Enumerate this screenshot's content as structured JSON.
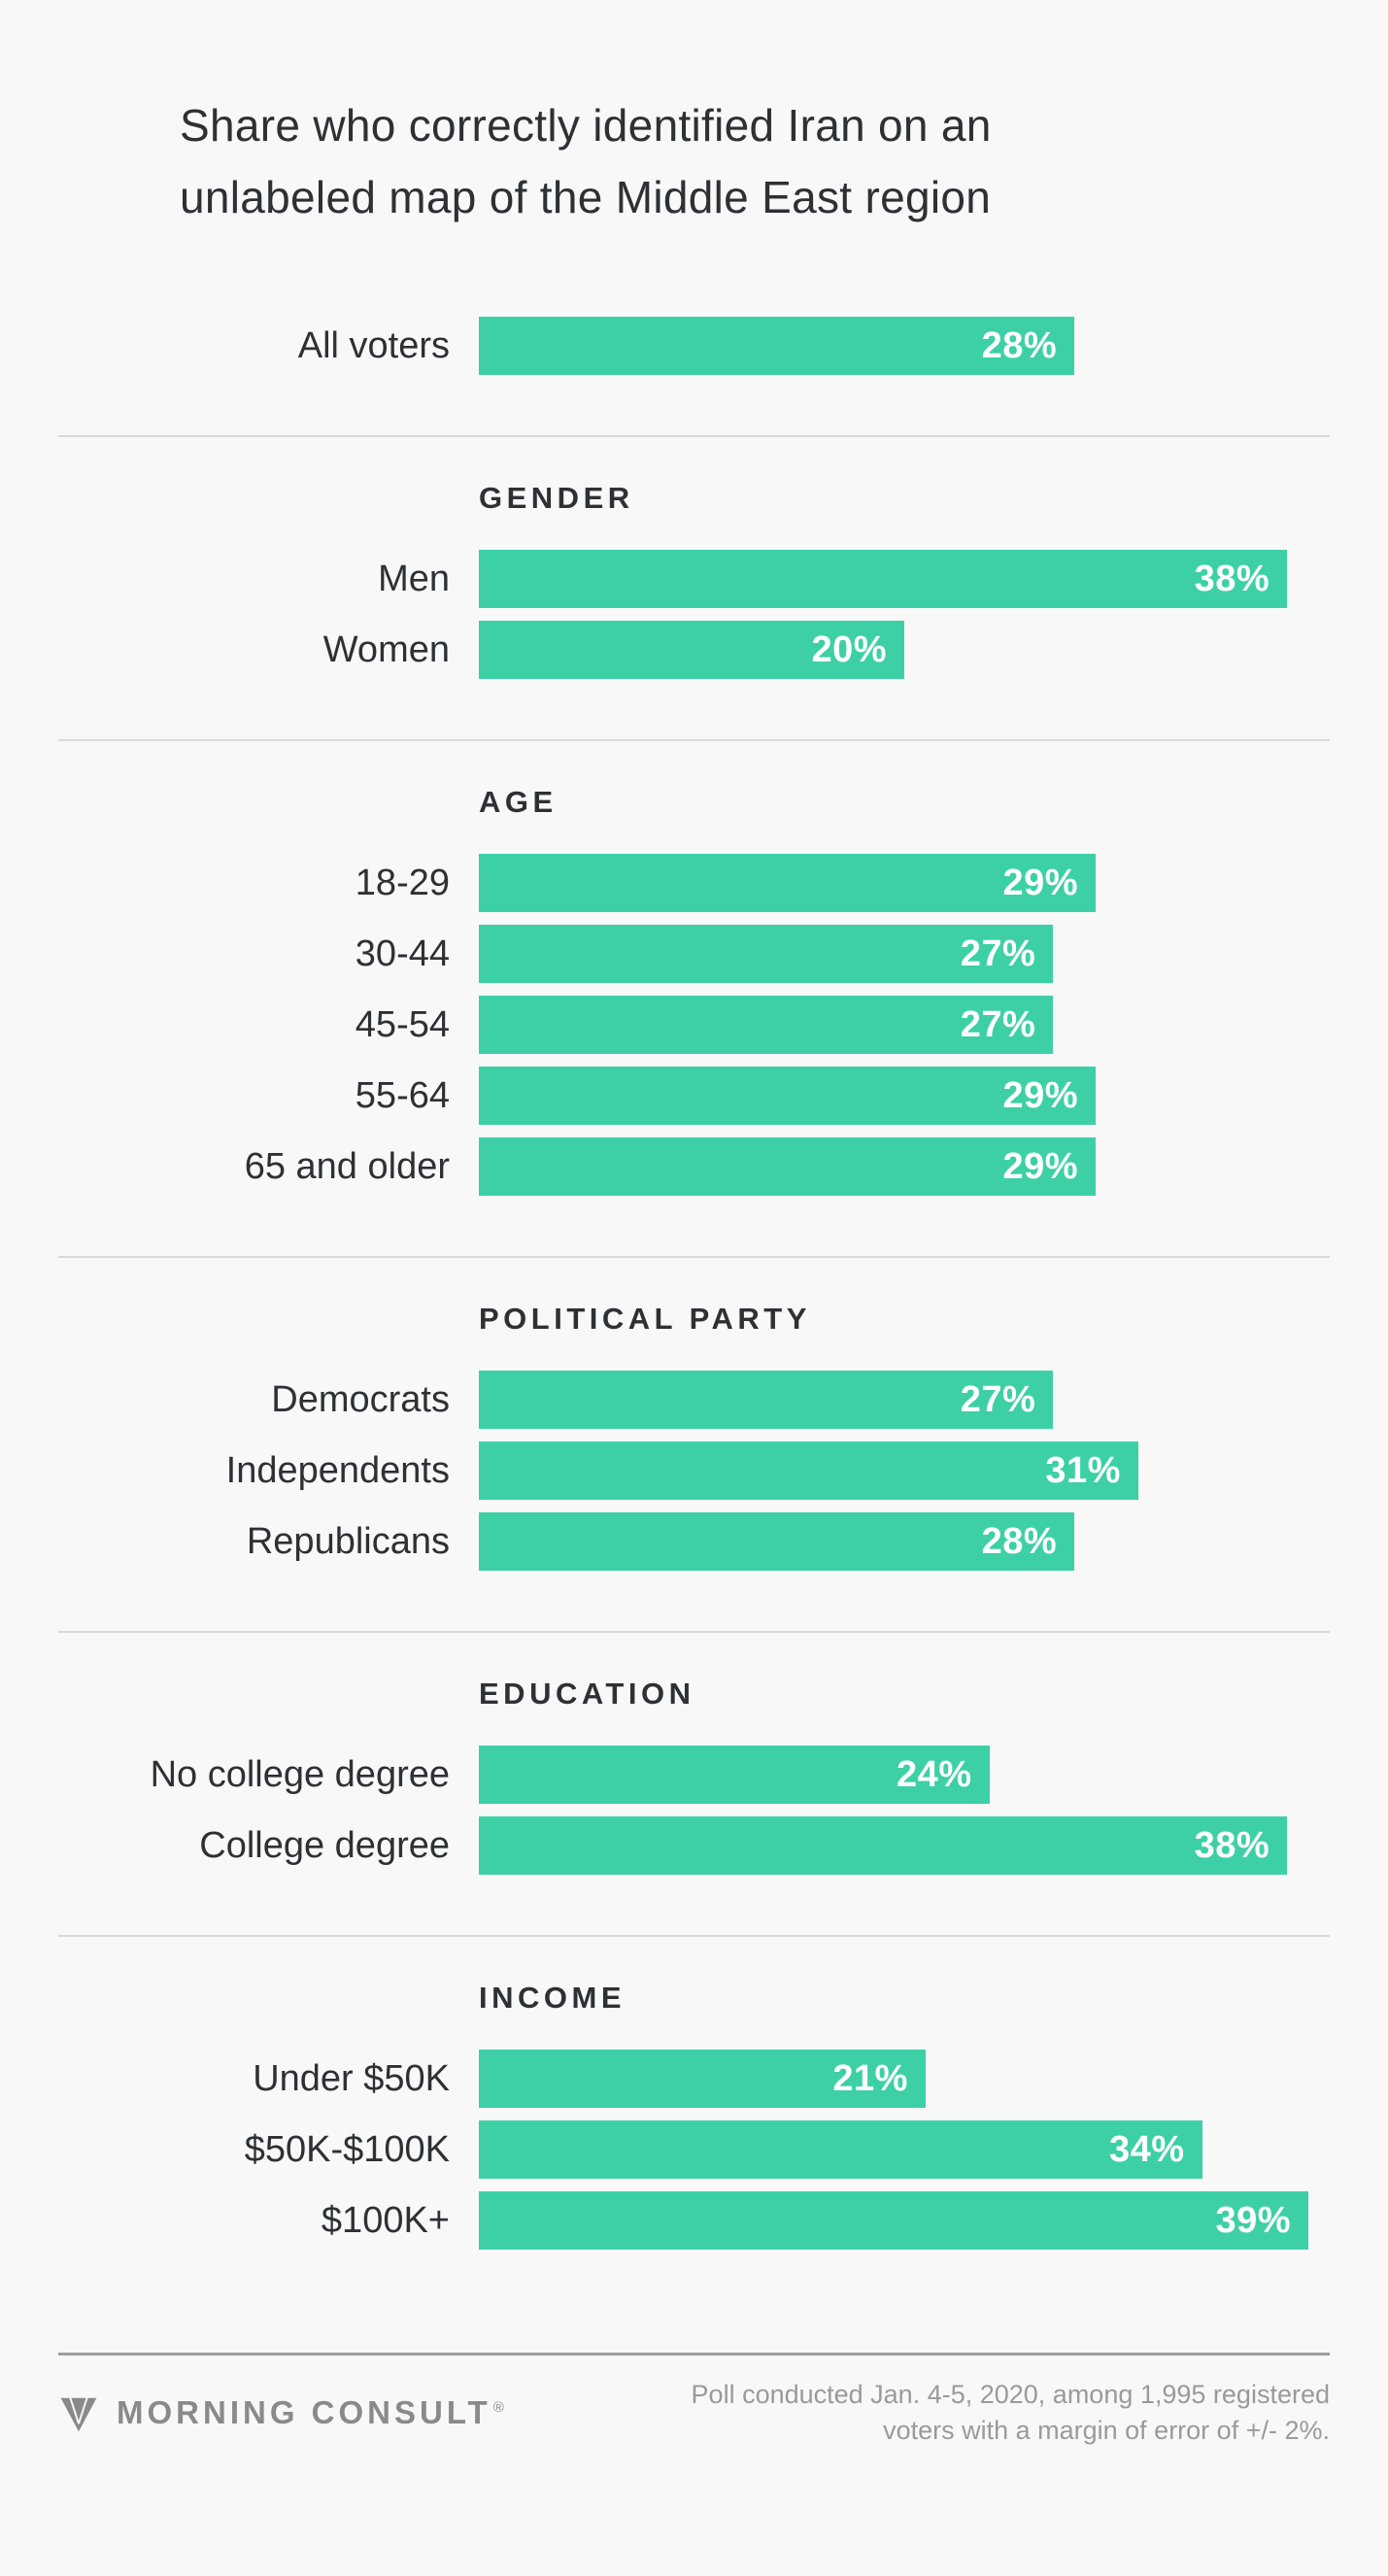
{
  "title_line1": "Share who correctly identified Iran on an",
  "title_line2": "unlabeled map of the Middle East region",
  "colors": {
    "bar": "#3dd0a6",
    "background": "#f8f8f8",
    "text_dark": "#2d3134",
    "divider": "#d9d9d9",
    "footer_divider": "#9e9e9e",
    "footer_text": "#9a9a9a",
    "logo_gray": "#8a8a8a",
    "bar_label": "#ffffff"
  },
  "chart_data": {
    "type": "bar",
    "orientation": "horizontal",
    "title": "Share who correctly identified Iran on an unlabeled map of the Middle East region",
    "unit": "%",
    "axis_max": 40,
    "value_labels": "inside-bar-right",
    "grid": false,
    "legend": false,
    "groups": [
      {
        "header": null,
        "rows": [
          {
            "label": "All voters",
            "value": 28
          }
        ]
      },
      {
        "header": "GENDER",
        "rows": [
          {
            "label": "Men",
            "value": 38
          },
          {
            "label": "Women",
            "value": 20
          }
        ]
      },
      {
        "header": "AGE",
        "rows": [
          {
            "label": "18-29",
            "value": 29
          },
          {
            "label": "30-44",
            "value": 27
          },
          {
            "label": "45-54",
            "value": 27
          },
          {
            "label": "55-64",
            "value": 29
          },
          {
            "label": "65 and older",
            "value": 29
          }
        ]
      },
      {
        "header": "POLITICAL PARTY",
        "rows": [
          {
            "label": "Democrats",
            "value": 27
          },
          {
            "label": "Independents",
            "value": 31
          },
          {
            "label": "Republicans",
            "value": 28
          }
        ]
      },
      {
        "header": "EDUCATION",
        "rows": [
          {
            "label": "No college degree",
            "value": 24
          },
          {
            "label": "College degree",
            "value": 38
          }
        ]
      },
      {
        "header": "INCOME",
        "rows": [
          {
            "label": "Under $50K",
            "value": 21
          },
          {
            "label": "$50K-$100K",
            "value": 34
          },
          {
            "label": "$100K+",
            "value": 39
          }
        ]
      }
    ]
  },
  "footer": {
    "logo_text": "MORNING CONSULT",
    "reg_mark": "®",
    "note_line1": "Poll conducted Jan. 4-5, 2020, among 1,995 registered",
    "note_line2": "voters with a margin of error of +/- 2%."
  }
}
